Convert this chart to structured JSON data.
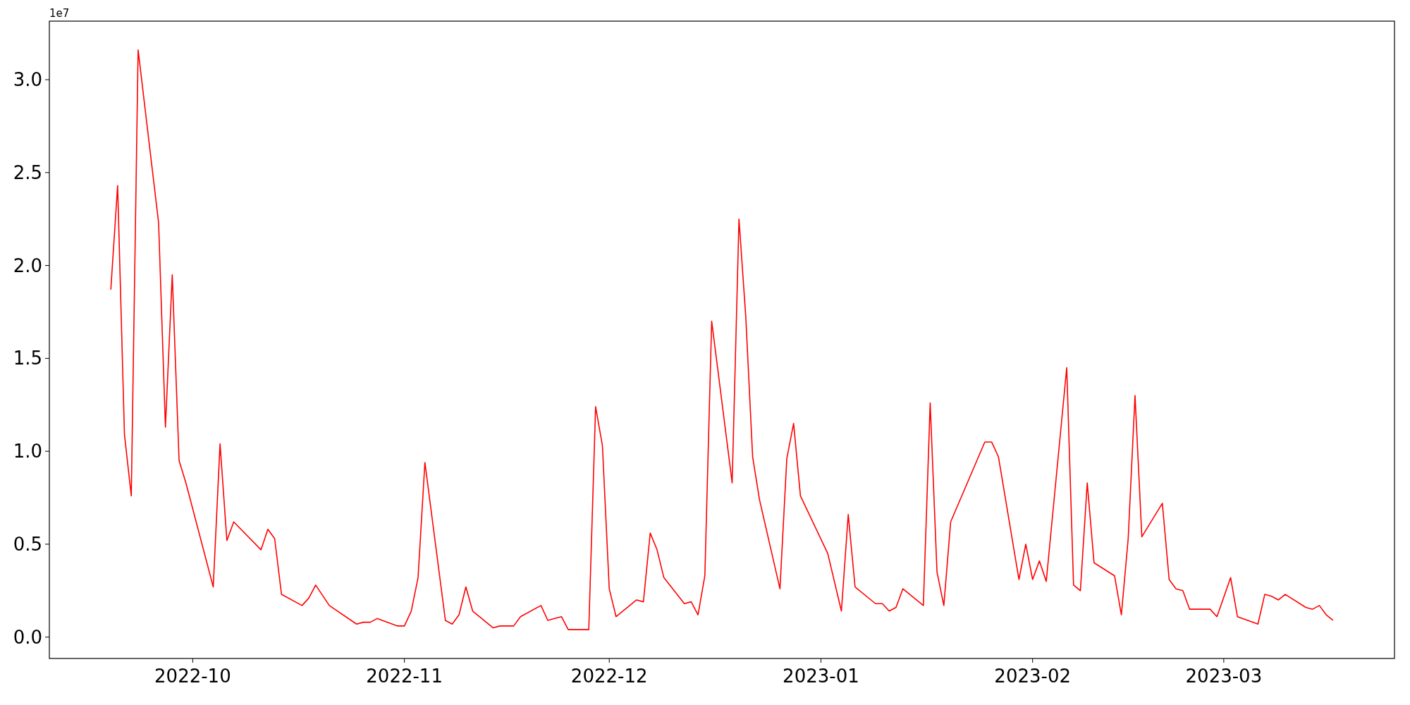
{
  "chart_data": {
    "type": "line",
    "annotations": [
      "1e7"
    ],
    "x": [
      "2022-09-19",
      "2022-09-20",
      "2022-09-21",
      "2022-09-22",
      "2022-09-23",
      "2022-09-26",
      "2022-09-27",
      "2022-09-28",
      "2022-09-29",
      "2022-09-30",
      "2022-10-04",
      "2022-10-05",
      "2022-10-06",
      "2022-10-07",
      "2022-10-11",
      "2022-10-12",
      "2022-10-13",
      "2022-10-14",
      "2022-10-17",
      "2022-10-18",
      "2022-10-19",
      "2022-10-21",
      "2022-10-25",
      "2022-10-26",
      "2022-10-27",
      "2022-10-28",
      "2022-10-31",
      "2022-11-01",
      "2022-11-02",
      "2022-11-03",
      "2022-11-04",
      "2022-11-07",
      "2022-11-08",
      "2022-11-09",
      "2022-11-10",
      "2022-11-11",
      "2022-11-14",
      "2022-11-15",
      "2022-11-16",
      "2022-11-17",
      "2022-11-18",
      "2022-11-21",
      "2022-11-22",
      "2022-11-23",
      "2022-11-24",
      "2022-11-25",
      "2022-11-28",
      "2022-11-29",
      "2022-11-30",
      "2022-12-01",
      "2022-12-02",
      "2022-12-05",
      "2022-12-06",
      "2022-12-07",
      "2022-12-08",
      "2022-12-09",
      "2022-12-12",
      "2022-12-13",
      "2022-12-14",
      "2022-12-15",
      "2022-12-16",
      "2022-12-19",
      "2022-12-20",
      "2022-12-21",
      "2022-12-22",
      "2022-12-23",
      "2022-12-26",
      "2022-12-27",
      "2022-12-28",
      "2022-12-29",
      "2023-01-02",
      "2023-01-04",
      "2023-01-05",
      "2023-01-06",
      "2023-01-09",
      "2023-01-10",
      "2023-01-11",
      "2023-01-12",
      "2023-01-13",
      "2023-01-16",
      "2023-01-17",
      "2023-01-18",
      "2023-01-19",
      "2023-01-20",
      "2023-01-25",
      "2023-01-26",
      "2023-01-27",
      "2023-01-30",
      "2023-01-31",
      "2023-02-01",
      "2023-02-02",
      "2023-02-03",
      "2023-02-06",
      "2023-02-07",
      "2023-02-08",
      "2023-02-09",
      "2023-02-10",
      "2023-02-13",
      "2023-02-14",
      "2023-02-15",
      "2023-02-16",
      "2023-02-17",
      "2023-02-20",
      "2023-02-21",
      "2023-02-22",
      "2023-02-23",
      "2023-02-24",
      "2023-02-27",
      "2023-02-28",
      "2023-03-02",
      "2023-03-03",
      "2023-03-06",
      "2023-03-07",
      "2023-03-08",
      "2023-03-09",
      "2023-03-10",
      "2023-03-13",
      "2023-03-14",
      "2023-03-15",
      "2023-03-16",
      "2023-03-17"
    ],
    "series": [
      {
        "color": "#ff0000",
        "values": [
          1.87,
          2.43,
          1.09,
          0.76,
          3.16,
          2.23,
          1.13,
          1.95,
          0.95,
          0.83,
          0.27,
          1.04,
          0.52,
          0.62,
          0.47,
          0.58,
          0.53,
          0.23,
          0.17,
          0.21,
          0.28,
          0.17,
          0.07,
          0.08,
          0.08,
          0.1,
          0.06,
          0.06,
          0.14,
          0.32,
          0.94,
          0.09,
          0.07,
          0.12,
          0.27,
          0.14,
          0.05,
          0.06,
          0.06,
          0.06,
          0.11,
          0.17,
          0.09,
          0.1,
          0.11,
          0.04,
          0.04,
          1.24,
          1.03,
          0.26,
          0.11,
          0.2,
          0.19,
          0.56,
          0.47,
          0.32,
          0.18,
          0.19,
          0.12,
          0.33,
          1.7,
          0.83,
          2.25,
          1.72,
          0.97,
          0.74,
          0.26,
          0.96,
          1.15,
          0.76,
          0.45,
          0.14,
          0.66,
          0.27,
          0.18,
          0.18,
          0.14,
          0.16,
          0.26,
          0.17,
          1.26,
          0.35,
          0.17,
          0.62,
          1.05,
          1.05,
          0.97,
          0.31,
          0.5,
          0.31,
          0.41,
          0.3,
          1.45,
          0.28,
          0.25,
          0.83,
          0.4,
          0.33,
          0.12,
          0.53,
          1.3,
          0.54,
          0.72,
          0.31,
          0.26,
          0.25,
          0.15,
          0.15,
          0.11,
          0.32,
          0.11,
          0.07,
          0.23,
          0.22,
          0.2,
          0.23,
          0.16,
          0.15,
          0.17,
          0.12,
          0.09
        ]
      }
    ],
    "xlim": [
      "2022-09-10",
      "2023-03-26"
    ],
    "xticks": [
      {
        "value": "2022-10-01",
        "label": "2022-10"
      },
      {
        "value": "2022-11-01",
        "label": "2022-11"
      },
      {
        "value": "2022-12-01",
        "label": "2022-12"
      },
      {
        "value": "2023-01-01",
        "label": "2023-01"
      },
      {
        "value": "2023-02-01",
        "label": "2023-02"
      },
      {
        "value": "2023-03-01",
        "label": "2023-03"
      }
    ],
    "ylim": [
      -0.115,
      3.315
    ],
    "yticks": [
      {
        "value": 0,
        "label": "0.0"
      },
      {
        "value": 0.5,
        "label": "0.5"
      },
      {
        "value": 1,
        "label": "1.0"
      },
      {
        "value": 1.5,
        "label": "1.5"
      },
      {
        "value": 2,
        "label": "2.0"
      },
      {
        "value": 2.5,
        "label": "2.5"
      },
      {
        "value": 3,
        "label": "3.0"
      }
    ],
    "grid": false,
    "marker": "none",
    "line_style": "solid"
  }
}
